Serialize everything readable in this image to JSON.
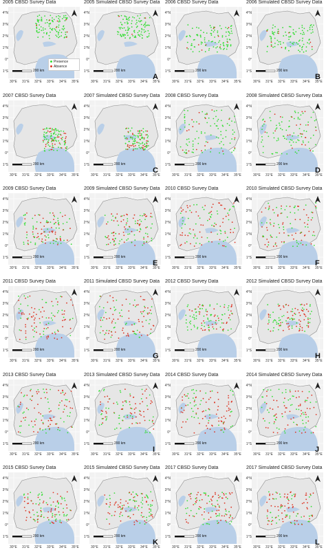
{
  "panels": [
    {
      "title": "2005 CBSD Survey Data",
      "letter": "",
      "presence": 0.95,
      "absence": 0.05,
      "extent": "north"
    },
    {
      "title": "2005 Simulated CBSD Survey Data",
      "letter": "A",
      "presence": 0.95,
      "absence": 0.05,
      "extent": "north"
    },
    {
      "title": "2006 CBSD Survey Data",
      "letter": "",
      "presence": 0.9,
      "absence": 0.1,
      "extent": "mid"
    },
    {
      "title": "2006 Simulated CBSD Survey Data",
      "letter": "B",
      "presence": 0.9,
      "absence": 0.1,
      "extent": "mid"
    },
    {
      "title": "2007 CBSD Survey Data",
      "letter": "",
      "presence": 0.7,
      "absence": 0.3,
      "extent": "east"
    },
    {
      "title": "2007 Simulated CBSD Survey Data",
      "letter": "C",
      "presence": 0.7,
      "absence": 0.3,
      "extent": "east"
    },
    {
      "title": "2008 CBSD Survey Data",
      "letter": "",
      "presence": 0.8,
      "absence": 0.2,
      "extent": "wide"
    },
    {
      "title": "2008 Simulated CBSD Survey Data",
      "letter": "D",
      "presence": 0.8,
      "absence": 0.2,
      "extent": "wide"
    },
    {
      "title": "2009 CBSD Survey Data",
      "letter": "",
      "presence": 0.45,
      "absence": 0.55,
      "extent": "central"
    },
    {
      "title": "2009 Simulated CBSD Survey Data",
      "letter": "E",
      "presence": 0.45,
      "absence": 0.55,
      "extent": "central"
    },
    {
      "title": "2010 CBSD Survey Data",
      "letter": "",
      "presence": 0.5,
      "absence": 0.5,
      "extent": "wide"
    },
    {
      "title": "2010 Simulated CBSD Survey Data",
      "letter": "F",
      "presence": 0.5,
      "absence": 0.5,
      "extent": "wide"
    },
    {
      "title": "2011 CBSD Survey Data",
      "letter": "",
      "presence": 0.35,
      "absence": 0.65,
      "extent": "wide"
    },
    {
      "title": "2011 Simulated CBSD Survey Data",
      "letter": "G",
      "presence": 0.35,
      "absence": 0.65,
      "extent": "wide"
    },
    {
      "title": "2012 CBSD Survey Data",
      "letter": "",
      "presence": 0.55,
      "absence": 0.45,
      "extent": "mid"
    },
    {
      "title": "2012 Simulated CBSD Survey Data",
      "letter": "H",
      "presence": 0.55,
      "absence": 0.45,
      "extent": "mid"
    },
    {
      "title": "2013 CBSD Survey Data",
      "letter": "",
      "presence": 0.4,
      "absence": 0.6,
      "extent": "wide"
    },
    {
      "title": "2013 Simulated CBSD Survey Data",
      "letter": "I",
      "presence": 0.4,
      "absence": 0.6,
      "extent": "wide"
    },
    {
      "title": "2014 CBSD Survey Data",
      "letter": "",
      "presence": 0.45,
      "absence": 0.55,
      "extent": "wide"
    },
    {
      "title": "2014 Simulated CBSD Survey Data",
      "letter": "J",
      "presence": 0.45,
      "absence": 0.55,
      "extent": "wide"
    },
    {
      "title": "2015 CBSD Survey Data",
      "letter": "",
      "presence": 0.45,
      "absence": 0.55,
      "extent": "central"
    },
    {
      "title": "2015 Simulated CBSD Survey Data",
      "letter": "K",
      "presence": 0.45,
      "absence": 0.55,
      "extent": "central"
    },
    {
      "title": "2017 CBSD Survey Data",
      "letter": "",
      "presence": 0.4,
      "absence": 0.6,
      "extent": "central"
    },
    {
      "title": "2017 Simulated CBSD Survey Data",
      "letter": "L",
      "presence": 0.4,
      "absence": 0.6,
      "extent": "central"
    }
  ],
  "ylabels": [
    "4°N",
    "3°N",
    "2°N",
    "1°N",
    "0°",
    "1°S"
  ],
  "xlabels": [
    "30°E",
    "31°E",
    "32°E",
    "33°E",
    "34°E",
    "35°E"
  ],
  "scale_label": "200 km",
  "legend": {
    "presence": "Presence",
    "absence": "Absence"
  },
  "colors": {
    "presence": "#33dd33",
    "absence": "#dd3322",
    "lake": "#b9cfe8",
    "land": "#e6e6e6",
    "border": "#888888"
  }
}
